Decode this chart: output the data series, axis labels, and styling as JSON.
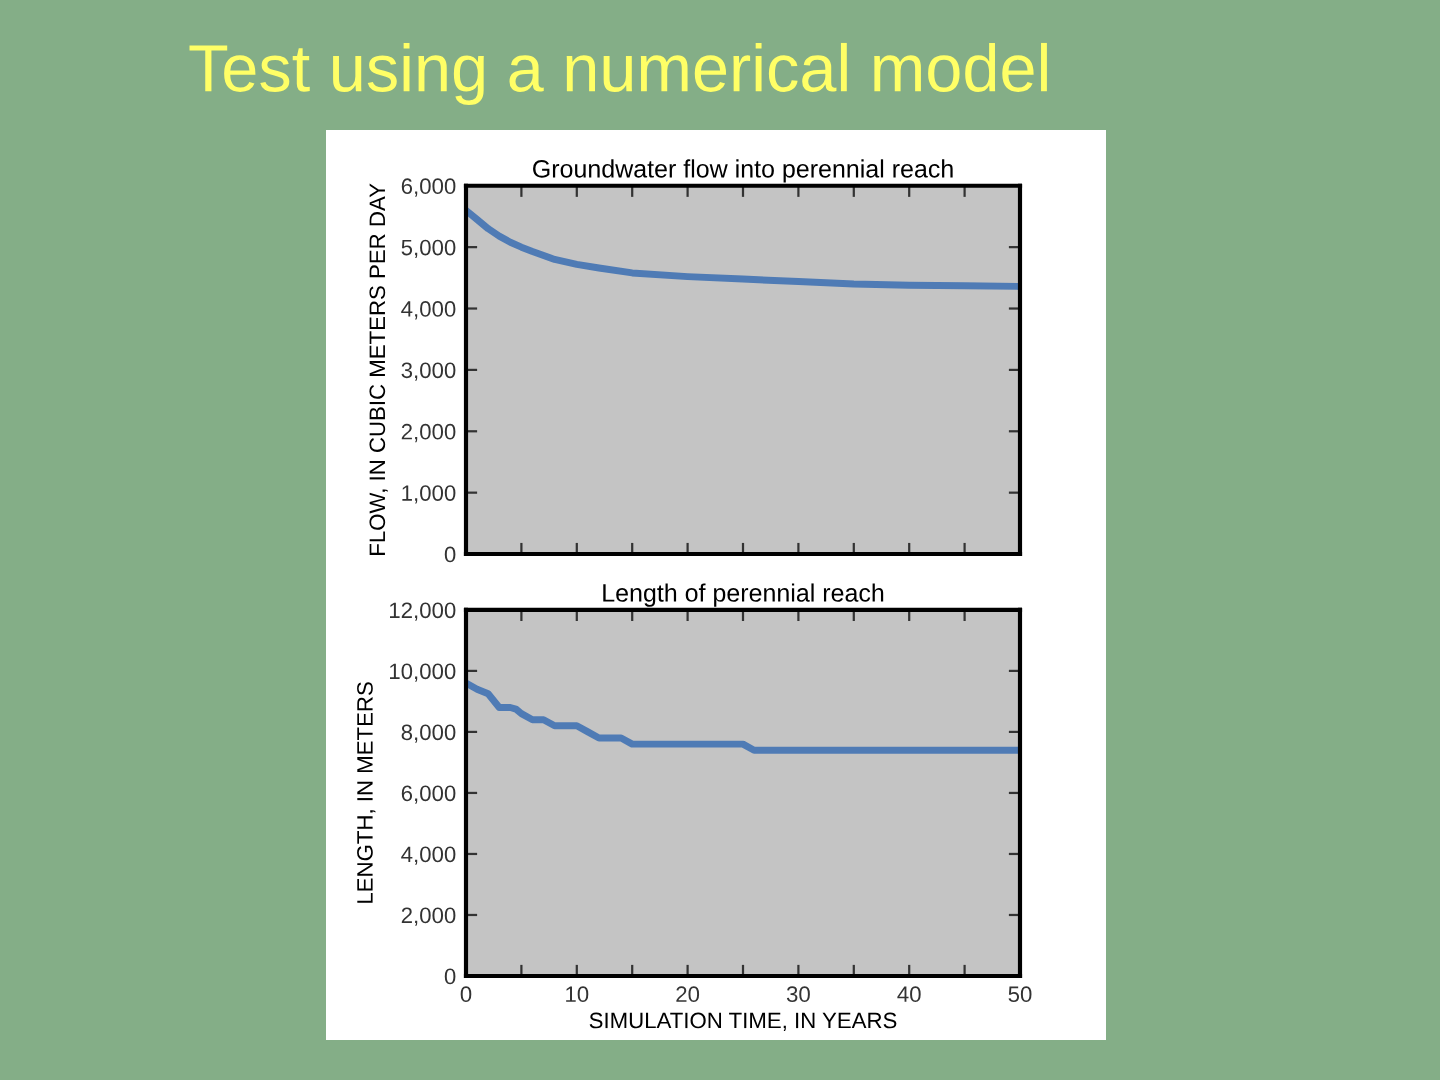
{
  "chart_data": [
    {
      "type": "line",
      "title": "Test using a numerical model",
      "subtitle": "Groundwater flow into perennial reach",
      "ylabel": "FLOW, IN CUBIC METERS PER DAY",
      "x": [
        0,
        1,
        2,
        3,
        4,
        5,
        6,
        8,
        10,
        12,
        15,
        20,
        25,
        30,
        35,
        40,
        45,
        50
      ],
      "series": [
        {
          "color": "#4f7bb5",
          "values": [
            5600,
            5450,
            5300,
            5180,
            5080,
            5000,
            4930,
            4800,
            4720,
            4660,
            4580,
            4520,
            4480,
            4440,
            4400,
            4380,
            4370,
            4360
          ]
        }
      ],
      "xlim": [
        0,
        50
      ],
      "ylim": [
        0,
        6000
      ],
      "xticks": [
        {
          "value": 0,
          "label": null
        },
        {
          "value": 5,
          "label": null
        },
        {
          "value": 10,
          "label": null
        },
        {
          "value": 15,
          "label": null
        },
        {
          "value": 20,
          "label": null
        },
        {
          "value": 25,
          "label": null
        },
        {
          "value": 30,
          "label": null
        },
        {
          "value": 35,
          "label": null
        },
        {
          "value": 40,
          "label": null
        },
        {
          "value": 45,
          "label": null
        },
        {
          "value": 50,
          "label": null
        }
      ],
      "yticks": [
        {
          "value": 0,
          "label": "0"
        },
        {
          "value": 1000,
          "label": "1,000"
        },
        {
          "value": 2000,
          "label": "2,000"
        },
        {
          "value": 3000,
          "label": "3,000"
        },
        {
          "value": 4000,
          "label": "4,000"
        },
        {
          "value": 5000,
          "label": "5,000"
        },
        {
          "value": 6000,
          "label": "6,000"
        }
      ],
      "tick_labels": "y",
      "grid": false,
      "legend": false,
      "line_style": "solid",
      "marker": "none"
    },
    {
      "type": "line",
      "title": "Length of perennial reach",
      "xlabel": "SIMULATION TIME, IN YEARS",
      "ylabel": "LENGTH, IN METERS",
      "x": [
        0,
        1,
        2,
        3,
        4,
        4.5,
        5,
        6,
        7,
        7.5,
        8,
        10,
        11,
        12,
        14,
        15,
        25,
        26,
        50
      ],
      "series": [
        {
          "color": "#4f7bb5",
          "values": [
            9600,
            9400,
            9250,
            8800,
            8800,
            8750,
            8600,
            8400,
            8400,
            8300,
            8200,
            8200,
            8000,
            7800,
            7800,
            7600,
            7600,
            7400,
            7400
          ]
        }
      ],
      "xlim": [
        0,
        50
      ],
      "ylim": [
        0,
        12000
      ],
      "xticks": [
        0,
        {
          "value": 5,
          "label": null
        },
        10,
        {
          "value": 15,
          "label": null
        },
        20,
        {
          "value": 25,
          "label": null
        },
        30,
        {
          "value": 35,
          "label": null
        },
        40,
        {
          "value": 45,
          "label": null
        },
        50
      ],
      "yticks": [
        {
          "value": 0,
          "label": "0"
        },
        {
          "value": 2000,
          "label": "2,000"
        },
        {
          "value": 4000,
          "label": "4,000"
        },
        {
          "value": 6000,
          "label": "6,000"
        },
        {
          "value": 8000,
          "label": "8,000"
        },
        {
          "value": 10000,
          "label": "10,000"
        },
        {
          "value": 12000,
          "label": "12,000"
        }
      ],
      "grid": false,
      "legend": false,
      "line_style": "solid",
      "marker": "none"
    }
  ]
}
